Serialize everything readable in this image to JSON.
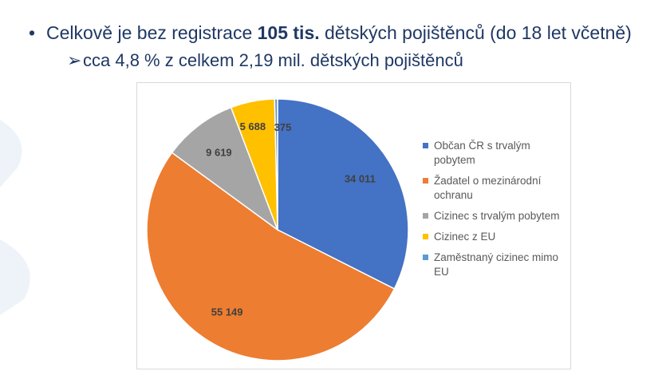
{
  "bullets": {
    "main": {
      "marker": "•",
      "prefix": "Celkově je bez registrace ",
      "bold": "105 tis.",
      "suffix": " dětských pojištěnců (do 18 let včetně)"
    },
    "sub": {
      "marker": "➢",
      "text": "cca 4,8 % z celkem 2,19 mil. dětských pojištěnců"
    }
  },
  "chart_data": {
    "type": "pie",
    "title": "",
    "legend_position": "right",
    "slices": [
      {
        "label": "Občan ČR s trvalým pobytem",
        "value": 34011,
        "display": "34 011",
        "color": "#4472c4"
      },
      {
        "label": "Žadatel o mezinárodní ochranu",
        "value": 55149,
        "display": "55 149",
        "color": "#ed7d31"
      },
      {
        "label": "Cizinec s trvalým pobytem",
        "value": 9619,
        "display": "9 619",
        "color": "#a5a5a5"
      },
      {
        "label": "Cizinec z EU",
        "value": 5688,
        "display": "5 688",
        "color": "#ffc000"
      },
      {
        "label": "Zaměstnaný cizinec mimo EU",
        "value": 375,
        "display": "375",
        "color": "#5b9bd5"
      }
    ]
  }
}
